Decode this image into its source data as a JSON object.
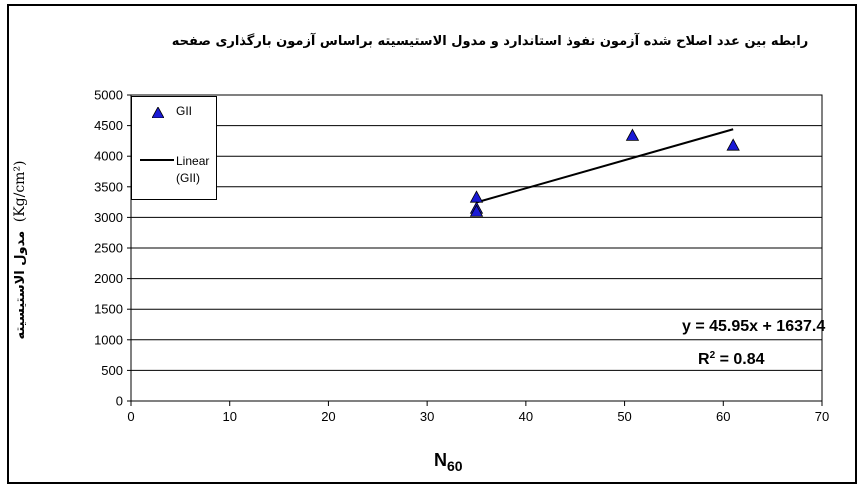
{
  "chart_data": {
    "type": "scatter",
    "title": "رابطه بین عدد  اصلاح شده آزمون نفوذ استاندارد و مدول الاستیسیته براساس آزمون بارگذاری صفحه",
    "xlabel": "N",
    "xlabel_sub": "60",
    "ylabel": "مدول الاستیسیته",
    "ylabel_unit": "(Kg/cm²)",
    "xlim": [
      0,
      70
    ],
    "ylim": [
      0,
      5000
    ],
    "x_ticks": [
      0,
      10,
      20,
      30,
      40,
      50,
      60,
      70
    ],
    "y_ticks": [
      0,
      500,
      1000,
      1500,
      2000,
      2500,
      3000,
      3500,
      4000,
      4500,
      5000
    ],
    "grid": "horizontal",
    "legend_position": "top-left",
    "series": [
      {
        "name": "GII",
        "marker": "triangle",
        "color": "#1a1ad6",
        "x": [
          35,
          35,
          35,
          50.8,
          61
        ],
        "y": [
          3330,
          3150,
          3100,
          4340,
          4180
        ]
      }
    ],
    "trendline": {
      "name_line1": "Linear",
      "name_line2": "(GII)",
      "slope": 45.95,
      "intercept": 1637.4,
      "x_range": [
        35,
        61
      ],
      "equation": "y = 45.95x + 1637.4",
      "r2_label": "R",
      "r2_value": " = 0.84"
    },
    "colors": {
      "marker": "#1a1ad6",
      "grid": "#000000",
      "trendline": "#000000"
    }
  }
}
